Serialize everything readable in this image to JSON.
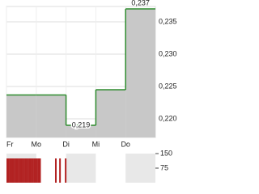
{
  "chart_data": [
    {
      "type": "line",
      "step": true,
      "categories": [
        "Fr",
        "Mo",
        "Di",
        "Mi",
        "Do"
      ],
      "series": [
        {
          "color": "#2e8b2e",
          "fill": "#c8c8c8",
          "values": [
            0.2237,
            0.2237,
            0.219,
            0.2245,
            0.237
          ],
          "value_labels": [
            null,
            null,
            "0,219",
            null,
            "0,237"
          ]
        }
      ],
      "ylim": [
        0.21713,
        0.23738
      ],
      "yticks": [
        {
          "value": 0.22,
          "label": "0,220"
        },
        {
          "value": 0.225,
          "label": "0,225"
        },
        {
          "value": 0.23,
          "label": "0,230"
        },
        {
          "value": 0.235,
          "label": "0,235"
        }
      ],
      "grid": true
    },
    {
      "type": "bar",
      "x": [
        0,
        0.05,
        0.1,
        0.15,
        0.2,
        0.25,
        0.3,
        0.35,
        0.4,
        0.45,
        0.5,
        0.55,
        0.6,
        0.65,
        0.7,
        0.75,
        0.8,
        0.85,
        0.9,
        0.95,
        1.0,
        1.05,
        1.1,
        1.63,
        1.77,
        1.96
      ],
      "values": [
        125,
        125,
        125,
        125,
        125,
        125,
        125,
        125,
        125,
        125,
        125,
        125,
        125,
        125,
        125,
        125,
        125,
        125,
        125,
        125,
        125,
        125,
        125,
        125,
        125,
        125
      ],
      "color": "#b22222",
      "xlim": [
        0,
        5
      ],
      "ylim": [
        0,
        150
      ],
      "yticks": [
        75,
        150
      ]
    }
  ]
}
